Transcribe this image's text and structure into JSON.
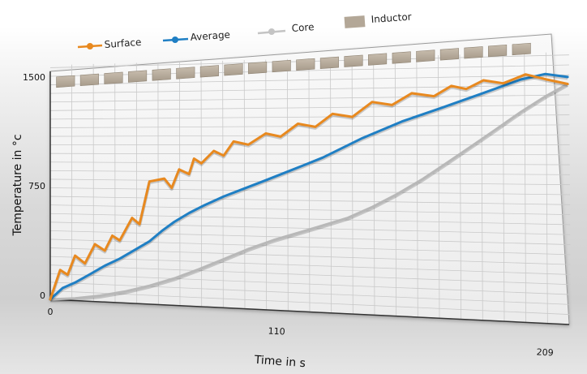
{
  "chart_data": {
    "type": "line",
    "title": "",
    "xlabel": "Time in s",
    "ylabel": "Temperature in °c",
    "xlim": [
      0,
      209
    ],
    "ylim": [
      0,
      1500
    ],
    "x_ticks": [
      "0",
      "110",
      "209"
    ],
    "y_ticks": [
      "0",
      "750",
      "1500"
    ],
    "grid": true,
    "legend_position": "top",
    "legend": [
      "Surface",
      "Average",
      "Core",
      "Inductor"
    ],
    "colors": {
      "Surface": "#e8891f",
      "Average": "#1f7fc4",
      "Core": "#b8b8b8",
      "Inductor": "#b3a797"
    },
    "inductor_blocks": 20,
    "series": [
      {
        "name": "Surface",
        "x": [
          0,
          4,
          7,
          10,
          14,
          18,
          22,
          25,
          28,
          33,
          36,
          40,
          46,
          49,
          52,
          56,
          58,
          61,
          66,
          70,
          74,
          80,
          87,
          93,
          100,
          107,
          114,
          122,
          130,
          138,
          146,
          155,
          162,
          168,
          175,
          183,
          192,
          200,
          209
        ],
        "y": [
          0,
          200,
          170,
          300,
          250,
          380,
          340,
          440,
          410,
          560,
          520,
          800,
          820,
          760,
          880,
          850,
          950,
          920,
          1000,
          970,
          1060,
          1040,
          1110,
          1090,
          1170,
          1150,
          1230,
          1210,
          1300,
          1280,
          1350,
          1330,
          1390,
          1370,
          1420,
          1400,
          1450,
          1420,
          1390
        ]
      },
      {
        "name": "Average",
        "x": [
          0,
          5,
          10,
          16,
          22,
          28,
          34,
          40,
          45,
          50,
          56,
          62,
          70,
          78,
          86,
          94,
          102,
          110,
          118,
          126,
          134,
          142,
          150,
          158,
          166,
          174,
          182,
          190,
          200,
          209
        ],
        "y": [
          0,
          80,
          120,
          180,
          240,
          290,
          350,
          410,
          480,
          540,
          600,
          650,
          710,
          760,
          810,
          860,
          910,
          960,
          1020,
          1080,
          1130,
          1180,
          1220,
          1260,
          1300,
          1340,
          1380,
          1420,
          1450,
          1430
        ]
      },
      {
        "name": "Core",
        "x": [
          0,
          10,
          20,
          30,
          40,
          50,
          60,
          70,
          80,
          90,
          100,
          110,
          120,
          130,
          140,
          150,
          160,
          170,
          180,
          190,
          200,
          209
        ],
        "y": [
          0,
          15,
          40,
          75,
          120,
          175,
          240,
          310,
          380,
          440,
          490,
          540,
          590,
          660,
          740,
          830,
          930,
          1030,
          1130,
          1230,
          1320,
          1390
        ]
      }
    ]
  }
}
